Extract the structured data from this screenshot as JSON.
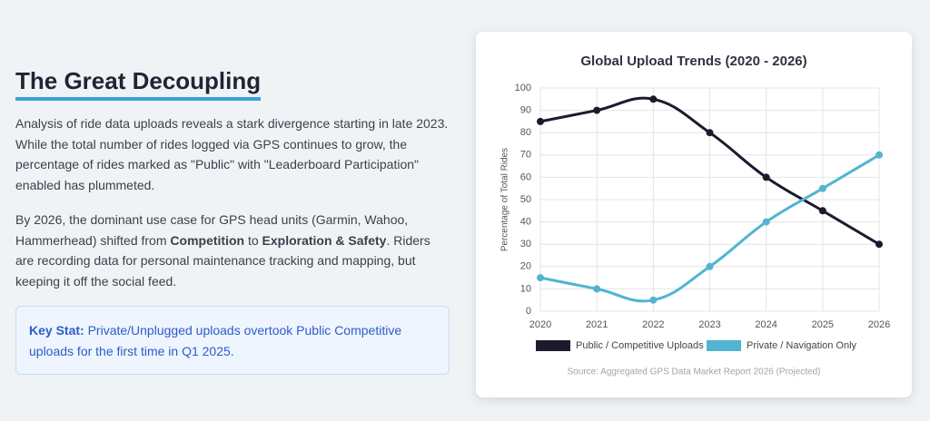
{
  "article": {
    "title": "The Great Decoupling",
    "paragraphs": [
      [
        "Analysis of ride data uploads reveals a stark divergence starting in late 2023. While the total number of rides logged via GPS continues to grow, the percentage of rides marked as \"Public\" with \"Leaderboard Participation\" enabled has plummeted."
      ],
      [
        "By 2026, the dominant use case for GPS head units (Garmin, Wahoo, Hammerhead) shifted from ",
        "Competition",
        " to ",
        "Exploration & Safety",
        ". Riders are recording data for personal maintenance tracking and mapping, but keeping it off the social feed."
      ]
    ],
    "key_stat": {
      "label": "Key Stat:",
      "text": "Private/Unplugged uploads overtook Public Competitive uploads for the first time in Q1 2025."
    }
  },
  "chart_data": {
    "type": "line",
    "title": "Global Upload Trends (2020 - 2026)",
    "y_label": "Percentage of Total Rides",
    "categories": [
      "2020",
      "2021",
      "2022",
      "2023",
      "2024",
      "2025",
      "2026"
    ],
    "series": [
      {
        "name": "Public / Competitive Uploads",
        "color": "#1c1b2e",
        "values": [
          85,
          90,
          95,
          80,
          60,
          45,
          30
        ]
      },
      {
        "name": "Private / Navigation Only",
        "color": "#52b4d1",
        "values": [
          15,
          10,
          5,
          20,
          40,
          55,
          70
        ]
      }
    ],
    "ylim": [
      0,
      100
    ],
    "yticks": [
      0,
      10,
      20,
      30,
      40,
      50,
      60,
      70,
      80,
      90,
      100
    ],
    "grid": true,
    "legend": "bottom",
    "source": "Source: Aggregated GPS Data Market Report 2026 (Projected)"
  }
}
